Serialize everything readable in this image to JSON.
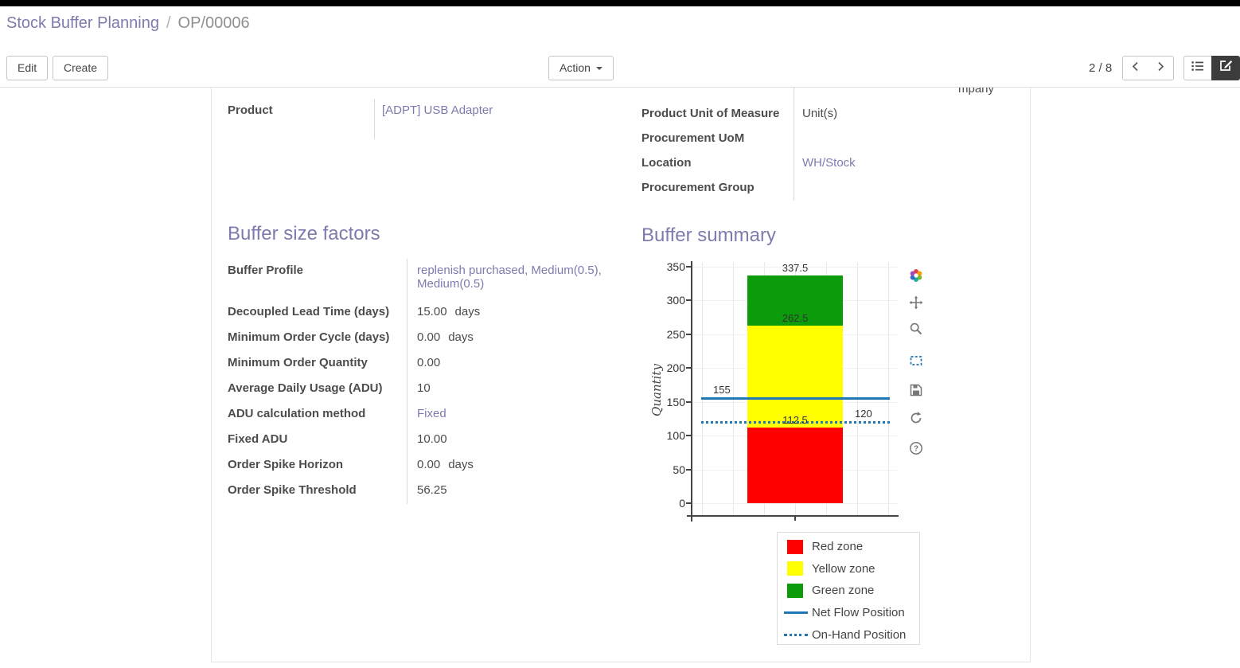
{
  "topbar": {
    "bg": "#000000"
  },
  "breadcrumb": {
    "parent": "Stock Buffer Planning",
    "separator": "/",
    "current": "OP/00006"
  },
  "control_panel": {
    "edit_label": "Edit",
    "create_label": "Create",
    "action_label": "Action",
    "pager_text": "2 / 8",
    "icons": [
      "prev-arrow",
      "next-arrow",
      "list-view",
      "form-view"
    ],
    "active_view": "form"
  },
  "form": {
    "clipped_text_fragment": "mpany",
    "left_group": {
      "rows": [
        {
          "label": "Product",
          "value": "[ADPT] USB Adapter",
          "link": true
        }
      ]
    },
    "right_group": {
      "rows": [
        {
          "label": "Product Unit of Measure",
          "value": "Unit(s)",
          "link": false
        },
        {
          "label": "Procurement UoM",
          "value": "",
          "link": false
        },
        {
          "label": "Location",
          "value": "WH/Stock",
          "link": true
        },
        {
          "label": "Procurement Group",
          "value": "",
          "link": false
        }
      ]
    },
    "buffer_factors": {
      "title": "Buffer size factors",
      "rows": [
        {
          "label": "Buffer Profile",
          "value": "replenish purchased, Medium(0.5), Medium(0.5)",
          "link": true
        },
        {
          "label": "Decoupled Lead Time (days)",
          "value": "15.00",
          "suffix": "days"
        },
        {
          "label": "Minimum Order Cycle (days)",
          "value": "0.00",
          "suffix": "days"
        },
        {
          "label": "Minimum Order Quantity",
          "value": "0.00"
        },
        {
          "label": "Average Daily Usage (ADU)",
          "value": "10"
        },
        {
          "label": "ADU calculation method",
          "value": "Fixed",
          "link": true
        },
        {
          "label": "Fixed ADU",
          "value": "10.00"
        },
        {
          "label": "Order Spike Horizon",
          "value": "0.00",
          "suffix": "days"
        },
        {
          "label": "Order Spike Threshold",
          "value": "56.25"
        }
      ]
    },
    "buffer_summary_title": "Buffer summary"
  },
  "chart_data": {
    "type": "bar",
    "title": "Buffer summary",
    "ylabel": "Quantity",
    "ylim": [
      0,
      350
    ],
    "yticks": [
      0,
      50,
      100,
      150,
      200,
      250,
      300,
      350
    ],
    "grid": true,
    "zones": [
      {
        "name": "Red zone",
        "from": 0,
        "to": 112.5,
        "color": "#ff0000"
      },
      {
        "name": "Yellow zone",
        "from": 112.5,
        "to": 262.5,
        "color": "#ffff00"
      },
      {
        "name": "Green zone",
        "from": 262.5,
        "to": 337.5,
        "color": "#0b9b0b"
      }
    ],
    "lines": [
      {
        "name": "Net Flow Position",
        "value": 155,
        "style": "solid",
        "color": "#1f77b4",
        "label_side": "left"
      },
      {
        "name": "On-Hand Position",
        "value": 120,
        "style": "dotted",
        "color": "#1f77b4",
        "label_side": "right"
      }
    ],
    "annotations": [
      337.5,
      262.5,
      155,
      120,
      112.5
    ],
    "legend": [
      {
        "label": "Red zone",
        "swatch": "fill",
        "color": "#ff0000"
      },
      {
        "label": "Yellow zone",
        "swatch": "fill",
        "color": "#ffff00"
      },
      {
        "label": "Green zone",
        "swatch": "fill",
        "color": "#0b9b0b"
      },
      {
        "label": "Net Flow Position",
        "swatch": "line",
        "color": "#1f77b4"
      },
      {
        "label": "On-Hand Position",
        "swatch": "dotted",
        "color": "#1f77b4"
      }
    ],
    "legend_position": "bottom-right",
    "toolbar_icons": [
      "plotly-logo",
      "pan",
      "zoom",
      "box-select",
      "save",
      "reset-axes",
      "help"
    ]
  },
  "colors": {
    "link": "#7c7bad",
    "heading": "#7c7bad",
    "label": "#4c4c4c",
    "axis": "#444444"
  }
}
